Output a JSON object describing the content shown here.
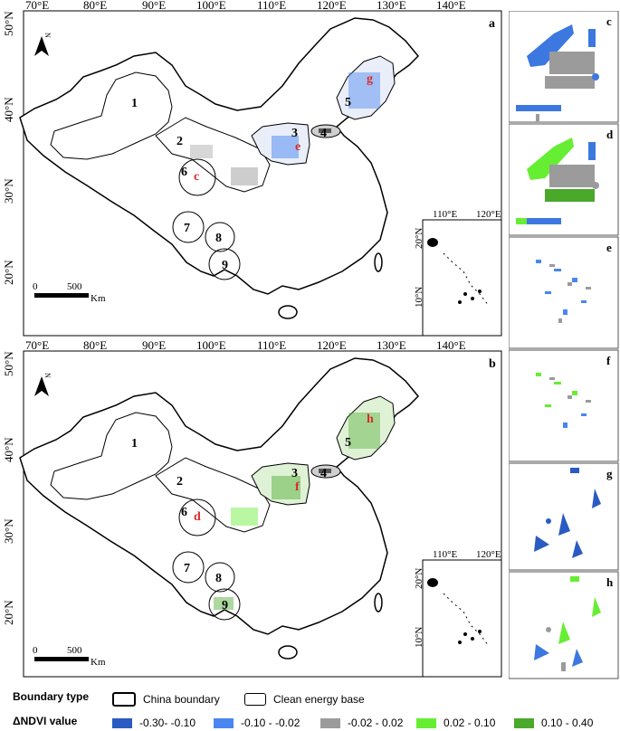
{
  "panels": {
    "a": {
      "letter": "a"
    },
    "b": {
      "letter": "b"
    }
  },
  "lon_labels": [
    "70°E",
    "80°E",
    "90°E",
    "100°E",
    "110°E",
    "120°E",
    "130°E",
    "140°E"
  ],
  "lat_labels": [
    "50°N",
    "40°N",
    "30°N",
    "20°N"
  ],
  "inset_lon_labels": [
    "110°E",
    "120°E"
  ],
  "inset_lat_labels": [
    "20°N",
    "10°N"
  ],
  "scale_bar": {
    "zero": "0",
    "distance": "500",
    "unit": "Km"
  },
  "north_letter": "N",
  "bases": [
    "1",
    "2",
    "3",
    "4",
    "5",
    "6",
    "7",
    "8",
    "9"
  ],
  "map_a_markers": [
    "c",
    "e",
    "g"
  ],
  "map_b_markers": [
    "d",
    "f",
    "h"
  ],
  "side_panels": [
    "c",
    "d",
    "e",
    "f",
    "g",
    "h"
  ],
  "legend": {
    "boundary_title": "Boundary type",
    "china_boundary": "China boundary",
    "clean_energy_base": "Clean energy base",
    "ndvi_title": "ΔNDVI value",
    "classes": [
      {
        "label": "-0.30- -0.10",
        "color": "#2a5bc2"
      },
      {
        "label": "-0.10 - -0.02",
        "color": "#4a86f0"
      },
      {
        "label": "-0.02 - 0.02",
        "color": "#9b9b9b"
      },
      {
        "label": "0.02 - 0.10",
        "color": "#66ee33"
      },
      {
        "label": "0.10 - 0.40",
        "color": "#4aa82b"
      }
    ]
  }
}
